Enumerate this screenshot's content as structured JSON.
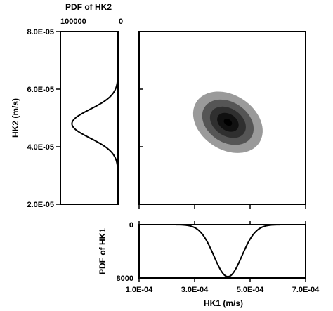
{
  "chart_data": [
    {
      "type": "line",
      "panel": "pdf-hk2",
      "title": "PDF of HK2",
      "ylabel": "HK2 (m/s)",
      "xlim": [
        100000,
        0
      ],
      "ylim": [
        2e-05,
        8e-05
      ],
      "x_tick_labels": [
        "100000",
        "0"
      ],
      "y_tick_labels": [
        "2.0E-05",
        "4.0E-05",
        "6.0E-05",
        "8.0E-05"
      ],
      "y_ticks": [
        2e-05,
        4e-05,
        6e-05,
        8e-05
      ],
      "curve": {
        "distribution": "normal",
        "mean": 4.8e-05,
        "sd": 5e-06,
        "peak": 80000
      }
    },
    {
      "type": "contour",
      "panel": "joint",
      "xlim": [
        0.0001,
        0.0007
      ],
      "ylim": [
        2e-05,
        8e-05
      ],
      "center": [
        0.00042,
        4.85e-05
      ],
      "levels": [
        {
          "a": 0.000135,
          "b": 9.5e-06,
          "color": "#9a9a9a"
        },
        {
          "a": 0.0001,
          "b": 7e-06,
          "color": "#555555"
        },
        {
          "a": 7e-05,
          "b": 4.8e-06,
          "color": "#2f2f2f"
        },
        {
          "a": 4.2e-05,
          "b": 2.9e-06,
          "color": "#111111"
        },
        {
          "a": 1.6e-05,
          "b": 1.1e-06,
          "color": "#000000"
        }
      ],
      "tilt_deg": 33,
      "grid": false
    },
    {
      "type": "line",
      "panel": "pdf-hk1",
      "ylabel": "PDF of HK1",
      "xlabel": "HK1 (m/s)",
      "xlim": [
        0.0001,
        0.0007
      ],
      "ylim": [
        0,
        8000
      ],
      "x_ticks": [
        0.0001,
        0.0003,
        0.0005,
        0.0007
      ],
      "x_tick_labels": [
        "1.0E-04",
        "3.0E-04",
        "5.0E-04",
        "7.0E-04"
      ],
      "y_tick_labels": [
        "0",
        "8000"
      ],
      "curve": {
        "distribution": "normal",
        "mean": 0.00042,
        "sd": 5e-05,
        "peak": 7800
      }
    }
  ]
}
